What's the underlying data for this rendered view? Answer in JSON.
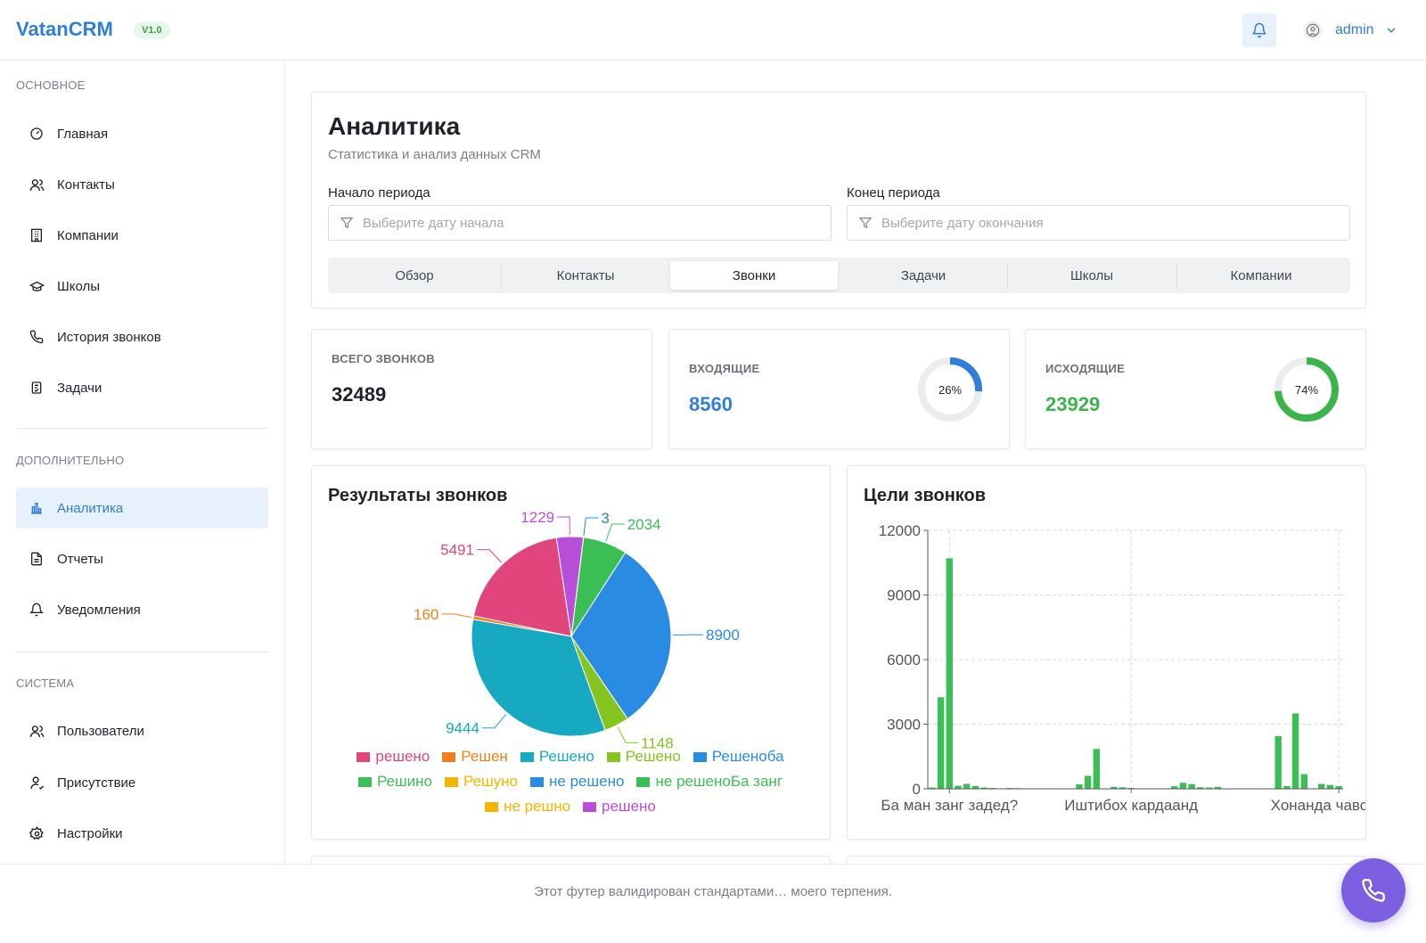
{
  "header": {
    "logo": "VatanCRM",
    "version": "V1.0",
    "user": "admin"
  },
  "sidebar": {
    "sections": [
      {
        "title": "ОСНОВНОЕ",
        "items": [
          {
            "label": "Главная",
            "icon": "dashboard-icon"
          },
          {
            "label": "Контакты",
            "icon": "users-icon"
          },
          {
            "label": "Компании",
            "icon": "building-icon"
          },
          {
            "label": "Школы",
            "icon": "graduation-cap-icon"
          },
          {
            "label": "История звонков",
            "icon": "phone-icon"
          },
          {
            "label": "Задачи",
            "icon": "task-icon"
          }
        ]
      },
      {
        "title": "ДОПОЛНИТЕЛЬНО",
        "items": [
          {
            "label": "Аналитика",
            "icon": "bar-chart-icon",
            "active": true
          },
          {
            "label": "Отчеты",
            "icon": "document-icon"
          },
          {
            "label": "Уведомления",
            "icon": "bell-icon"
          }
        ]
      },
      {
        "title": "СИСТЕМА",
        "items": [
          {
            "label": "Пользователи",
            "icon": "users-icon"
          },
          {
            "label": "Присутствие",
            "icon": "user-check-icon"
          },
          {
            "label": "Настройки",
            "icon": "gear-icon"
          }
        ]
      }
    ]
  },
  "main": {
    "title": "Аналитика",
    "subtitle": "Статистика и анализ данных CRM",
    "start_label": "Начало периода",
    "start_placeholder": "Выберите дату начала",
    "end_label": "Конец периода",
    "end_placeholder": "Выберите дату окончания",
    "tabs": [
      "Обзор",
      "Контакты",
      "Звонки",
      "Задачи",
      "Школы",
      "Компании"
    ],
    "active_tab": "Звонки"
  },
  "stats": {
    "total": {
      "label": "ВСЕГО ЗВОНКОВ",
      "value": "32489"
    },
    "incoming": {
      "label": "ВХОДЯЩИЕ",
      "value": "8560",
      "percent": "26%",
      "fraction": 0.26,
      "color": "#2f7fd6"
    },
    "outgoing": {
      "label": "ИСХОДЯЩИЕ",
      "value": "23929",
      "percent": "74%",
      "fraction": 0.74,
      "color": "#3bb54a"
    }
  },
  "chart_data": [
    {
      "type": "pie",
      "title": "Результаты звонков",
      "slices": [
        {
          "label": "решено",
          "value": 5491,
          "color": "#e0457b"
        },
        {
          "label": "Решен",
          "value": 160,
          "color": "#f0801a"
        },
        {
          "label": "Решено",
          "value": 9444,
          "color": "#17a8c2"
        },
        {
          "label": "Решено",
          "value": 1148,
          "color": "#84c51f"
        },
        {
          "label": "Решеноба",
          "value": 8900,
          "color": "#2a8be3"
        },
        {
          "label": "Решино",
          "value": 2034,
          "color": "#3bbf55"
        },
        {
          "label": "Решуно",
          "value": 3,
          "color": "#f5b400"
        },
        {
          "label": "не решено",
          "value": 3,
          "color": "#2a8be3"
        },
        {
          "label": "не решеноБа занг",
          "value": 0,
          "color": "#3bbf55"
        },
        {
          "label": "не решно",
          "value": 0,
          "color": "#f5b400"
        },
        {
          "label": "решено",
          "value": 1229,
          "color": "#b84fd9"
        }
      ]
    },
    {
      "type": "bar",
      "title": "Цели звонков",
      "ylim": [
        0,
        12000
      ],
      "yticks": [
        "0",
        "3000",
        "6000",
        "9000",
        "12000"
      ],
      "xtick_labels": [
        "Ба ман занг задед?",
        "Иштибох кардаанд",
        "Хонанда чавоб дод"
      ],
      "color": "#3bbf55",
      "values": [
        60,
        4250,
        10700,
        140,
        230,
        130,
        60,
        40,
        20,
        40,
        30,
        0,
        0,
        0,
        0,
        0,
        0,
        210,
        600,
        1850,
        0,
        90,
        70,
        40,
        20,
        0,
        0,
        0,
        120,
        280,
        220,
        70,
        60,
        90,
        0,
        0,
        0,
        0,
        0,
        0,
        2450,
        130,
        3500,
        680,
        0,
        230,
        180,
        130
      ]
    }
  ],
  "footer": {
    "text": "Этот футер валидирован стандартами… моего терпения."
  }
}
